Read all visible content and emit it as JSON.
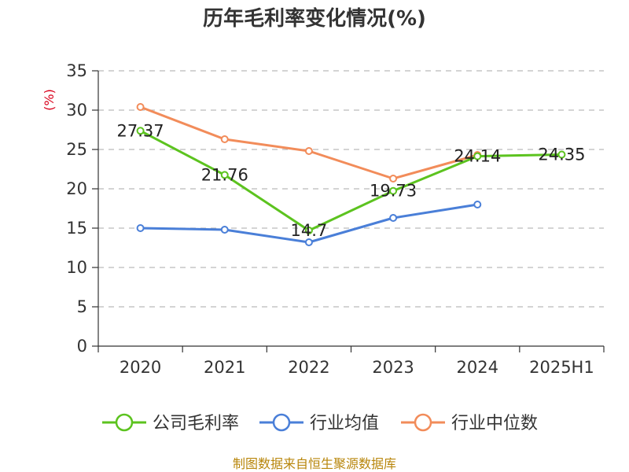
{
  "chart_data": {
    "type": "line",
    "title": "历年毛利率变化情况(%)",
    "ylabel": "(%)",
    "xlabel": "",
    "categories": [
      "2020",
      "2021",
      "2022",
      "2023",
      "2024",
      "2025H1"
    ],
    "ylim": [
      0,
      35
    ],
    "yticks": [
      0,
      5,
      10,
      15,
      20,
      25,
      30,
      35
    ],
    "grid": "horizontal-dashed",
    "legend_position": "bottom",
    "series": [
      {
        "name": "公司毛利率",
        "color": "#5cc31f",
        "values": [
          27.37,
          21.76,
          14.7,
          19.73,
          24.14,
          24.35
        ],
        "labels": [
          "27.37",
          "21.76",
          "14.7",
          "19.73",
          "24.14",
          "24.35"
        ]
      },
      {
        "name": "行业均值",
        "color": "#4a7fd8",
        "values": [
          15.0,
          14.8,
          13.2,
          16.3,
          18.0,
          null
        ],
        "labels": []
      },
      {
        "name": "行业中位数",
        "color": "#f28c5a",
        "values": [
          30.4,
          26.3,
          24.8,
          21.3,
          24.3,
          null
        ],
        "labels": []
      }
    ]
  },
  "footer": {
    "source": "制图数据来自恒生聚源数据库"
  }
}
